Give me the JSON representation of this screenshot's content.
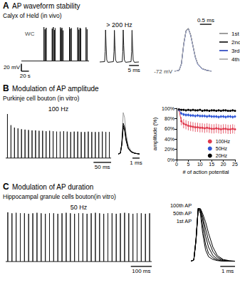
{
  "panels": [
    {
      "label": "A",
      "title": "AP waveform stability",
      "subtitle": "Calyx of Held (in vivo)"
    },
    {
      "label": "B",
      "title": "Modulation of AP amplitude",
      "subtitle": "Purkinje cell bouton (in vitro)"
    },
    {
      "label": "C",
      "title": "Modulation of AP duration",
      "subtitle": "Hippocampal granule cells bouton(in vitro)"
    }
  ],
  "chart_data": [
    {
      "type": "spike_train",
      "panel": "A",
      "color": "#1a1a1a",
      "tick_labels": false,
      "spikes": {
        "t_start": 0,
        "t_end": 180,
        "baseline": -72,
        "times": [
          60,
          63,
          66,
          82,
          85,
          88,
          90,
          104,
          106,
          108,
          111,
          128,
          130,
          133,
          150,
          153,
          156,
          158,
          172,
          175
        ],
        "peaks": [
          18,
          12,
          16,
          14,
          18,
          10,
          15,
          17,
          12,
          16,
          9,
          18,
          13,
          15,
          17,
          11,
          16,
          14,
          17,
          12
        ]
      },
      "scale_bars": [
        {
          "axis": "y",
          "value": 20,
          "label": "20 mV"
        },
        {
          "axis": "x",
          "value": 20,
          "label": "20 s"
        }
      ],
      "annotations": [
        {
          "text": "WC",
          "x": 4,
          "y": 0
        }
      ]
    },
    {
      "type": "waveform",
      "panel": "A",
      "title": "> 200 Hz",
      "color": "#1a1a1a",
      "tick_labels": false,
      "x": [
        0,
        2.5,
        2.8,
        3.0,
        3.25,
        3.6,
        4.2,
        7.0,
        7.3,
        7.5,
        7.75,
        8.1,
        8.7,
        11.5,
        11.8,
        12.0,
        12.25,
        12.6,
        13.2,
        16.0,
        16.3,
        16.5,
        16.75,
        17.1,
        17.7,
        20
      ],
      "series": [
        {
          "values": [
            -71,
            -70,
            -40,
            25,
            -20,
            -65,
            -72,
            -70,
            -40,
            24,
            -20,
            -65,
            -72,
            -70,
            -40,
            25,
            -21,
            -65,
            -72,
            -70,
            -40,
            24,
            -20,
            -65,
            -72,
            -71
          ]
        }
      ],
      "scale_bars": [
        {
          "axis": "x",
          "value": 5,
          "label": "5 ms"
        }
      ]
    },
    {
      "type": "waveform",
      "panel": "A",
      "tick_labels": false,
      "legend": "right",
      "x": [
        0,
        0.2,
        0.3,
        0.4,
        0.5,
        0.6,
        0.7,
        0.8,
        0.9,
        1.0,
        1.2,
        1.4,
        1.6
      ],
      "series": [
        {
          "name": "1st",
          "color": "#9e9e9e",
          "values": [
            -72,
            -70,
            -54,
            -8,
            21,
            25,
            11,
            -14,
            -39,
            -54,
            -66,
            -70,
            -72
          ]
        },
        {
          "name": "2nd",
          "color": "#3a3a3a",
          "values": [
            -72,
            -70,
            -55,
            -10,
            20,
            25,
            10,
            -15,
            -40,
            -55,
            -66,
            -70,
            -72
          ]
        },
        {
          "name": "3rd",
          "color": "#4b63c9",
          "values": [
            -72,
            -70,
            -56,
            -11,
            19,
            24,
            9,
            -16,
            -41,
            -56,
            -67,
            -70,
            -72
          ]
        },
        {
          "name": "4th",
          "color": "#b5b5b5",
          "values": [
            -72,
            -70,
            -55,
            -9,
            20,
            24,
            10,
            -15,
            -40,
            -55,
            -66,
            -71,
            -72
          ]
        }
      ],
      "scale_bars": [
        {
          "axis": "x",
          "value": 0.5,
          "label": "0.5 ms"
        }
      ],
      "annotations": [
        {
          "text": "-72 mV",
          "x": 0,
          "y": -72
        }
      ]
    },
    {
      "type": "spike_train",
      "panel": "B",
      "title": "100 Hz",
      "color": "#1a1a1a",
      "tick_labels": false,
      "spikes": {
        "t_start": 0,
        "t_end": 300,
        "baseline": -70,
        "times": [
          5,
          15,
          25,
          35,
          45,
          55,
          65,
          75,
          85,
          95,
          105,
          115,
          125,
          135,
          145,
          155,
          165,
          175,
          185,
          195,
          205,
          215,
          225,
          235,
          245,
          255,
          265,
          275,
          285,
          295
        ],
        "peaks": [
          40,
          12,
          6,
          4,
          2,
          1,
          0,
          -1,
          -1,
          -2,
          -2,
          -3,
          -2,
          -3,
          -4,
          -4,
          -3,
          -4,
          -5,
          -4,
          -4,
          -5,
          -5,
          -4,
          -5,
          -5,
          -5,
          -4,
          -5,
          -5
        ]
      },
      "scale_bars": [
        {
          "axis": "x",
          "value": 50,
          "label": "50 ms"
        }
      ]
    },
    {
      "type": "waveform",
      "panel": "B",
      "color": "#000000",
      "tick_labels": false,
      "x": [
        0,
        0.3,
        0.5,
        0.7,
        0.9,
        1.1,
        1.4,
        1.8,
        2.3,
        3.0
      ],
      "series": [
        {
          "color": "#9a9a9a",
          "values": [
            -70,
            -68,
            -42,
            35,
            22,
            -18,
            -48,
            -62,
            -68,
            -70
          ]
        },
        {
          "color": "#000000",
          "values": [
            -70,
            -68,
            -45,
            8,
            -2,
            -30,
            -54,
            -64,
            -68,
            -70
          ]
        },
        {
          "color": "#000000",
          "values": [
            -70,
            -68,
            -46,
            2,
            -6,
            -33,
            -55,
            -64,
            -68,
            -70
          ]
        },
        {
          "color": "#000000",
          "values": [
            -70,
            -68,
            -47,
            -3,
            -10,
            -36,
            -56,
            -65,
            -68,
            -70
          ]
        }
      ],
      "scale_bars": [
        {
          "axis": "x",
          "value": 1,
          "label": "1 ms"
        }
      ]
    },
    {
      "type": "line",
      "panel": "B",
      "marker": "circle",
      "grid": false,
      "legend": "lower right",
      "x_label": "# of action potential",
      "y_label": "amplitude (%)",
      "x": [
        1,
        2,
        3,
        4,
        5,
        6,
        7,
        8,
        9,
        10,
        11,
        12,
        13,
        14,
        15,
        16,
        17,
        18,
        19,
        20,
        21,
        22,
        23,
        24,
        25
      ],
      "series": [
        {
          "name": "100Hz",
          "color": "#e03a4e",
          "values": [
            97,
            75,
            70,
            68,
            66,
            65,
            64,
            63,
            63,
            62,
            62,
            61,
            62,
            61,
            60,
            60,
            61,
            60,
            59,
            60,
            60,
            59,
            59,
            60,
            59
          ],
          "errors": [
            2,
            8,
            9,
            9,
            9,
            9,
            9,
            9,
            9,
            9,
            9,
            9,
            9,
            9,
            9,
            9,
            9,
            9,
            9,
            9,
            9,
            9,
            9,
            9,
            9
          ]
        },
        {
          "name": "50Hz",
          "color": "#2f56d6",
          "values": [
            97,
            90,
            88,
            87,
            87,
            86,
            86,
            85,
            86,
            85,
            85,
            85,
            84,
            85,
            84,
            84,
            84,
            83,
            84,
            84,
            83,
            84,
            84,
            83,
            84
          ],
          "errors": [
            3,
            3,
            3,
            3,
            3,
            3,
            3,
            3,
            3,
            3,
            3,
            3,
            3,
            3,
            3,
            3,
            3,
            3,
            3,
            3,
            3,
            3,
            3,
            3,
            3
          ]
        },
        {
          "name": "20Hz",
          "color": "#000000",
          "values": [
            98,
            97,
            97,
            96,
            97,
            96,
            97,
            96,
            96,
            97,
            95,
            96,
            96,
            95,
            96,
            96,
            95,
            96,
            95,
            96,
            96,
            95,
            95,
            96,
            95
          ],
          "errors": [
            1.5,
            1.5,
            1.5,
            1.5,
            1.5,
            1.5,
            1.5,
            1.5,
            1.5,
            1.5,
            1.5,
            1.5,
            1.5,
            1.5,
            1.5,
            1.5,
            1.5,
            1.5,
            1.5,
            1.5,
            1.5,
            1.5,
            1.5,
            1.5,
            1.5
          ]
        }
      ],
      "xlim": [
        0,
        25
      ],
      "xticks": [
        0,
        5,
        10,
        15,
        20,
        25
      ],
      "ylim": [
        0,
        100
      ],
      "yticks": [
        {
          "value": 0,
          "label": "0%"
        },
        {
          "value": 20,
          "label": "20%"
        },
        {
          "value": 40,
          "label": "40%"
        },
        {
          "value": 60,
          "label": "60%"
        },
        {
          "value": 80,
          "label": "80%"
        },
        {
          "value": 100,
          "label": "100%"
        }
      ]
    },
    {
      "type": "spike_train",
      "panel": "C",
      "title": "50 Hz",
      "color": "#1a1a1a",
      "tick_labels": false,
      "spikes": {
        "t_start": 0,
        "t_end": 700,
        "baseline": -70,
        "times": [
          10,
          30,
          50,
          70,
          90,
          110,
          130,
          150,
          170,
          190,
          210,
          230,
          250,
          270,
          290,
          310,
          330,
          350,
          370,
          390,
          410,
          430,
          450,
          470,
          490,
          510,
          530,
          550,
          570,
          590,
          610,
          630,
          650,
          670,
          690
        ],
        "peaks": [
          32,
          30,
          31,
          30,
          30,
          29,
          30,
          31,
          30,
          29,
          30,
          30,
          29,
          30,
          31,
          30,
          29,
          30,
          30,
          29,
          30,
          31,
          30,
          29,
          30,
          30,
          29,
          30,
          31,
          30,
          29,
          30,
          30,
          29,
          30
        ]
      },
      "scale_bars": [
        {
          "axis": "x",
          "value": 100,
          "label": "100 ms"
        }
      ]
    },
    {
      "type": "waveform",
      "panel": "C",
      "color": "#000000",
      "tick_labels": false,
      "x": [
        0,
        0.2,
        0.35,
        0.5,
        0.65,
        0.8,
        1.0,
        1.2,
        1.5,
        1.8,
        2.2,
        2.6,
        3.0
      ],
      "series": [
        {
          "name": "1st AP",
          "values": [
            -70,
            -68,
            -30,
            25,
            15,
            -20,
            -50,
            -62,
            -67,
            -69,
            -70,
            -70,
            -70
          ]
        },
        {
          "values": [
            -70,
            -68,
            -31,
            25,
            19,
            -8,
            -40,
            -56,
            -64,
            -68,
            -70,
            -70,
            -70
          ]
        },
        {
          "name": "50th AP",
          "values": [
            -70,
            -68,
            -32,
            24,
            22,
            5,
            -25,
            -45,
            -60,
            -66,
            -69,
            -70,
            -70
          ]
        },
        {
          "values": [
            -70,
            -68,
            -33,
            24,
            23,
            10,
            -12,
            -33,
            -53,
            -63,
            -68,
            -70,
            -70
          ]
        },
        {
          "name": "100th AP",
          "values": [
            -70,
            -68,
            -33,
            24,
            24,
            15,
            0,
            -20,
            -45,
            -60,
            -67,
            -69,
            -70
          ]
        }
      ],
      "scale_bars": [
        {
          "axis": "x",
          "value": 1,
          "label": "1 ms"
        }
      ]
    }
  ]
}
